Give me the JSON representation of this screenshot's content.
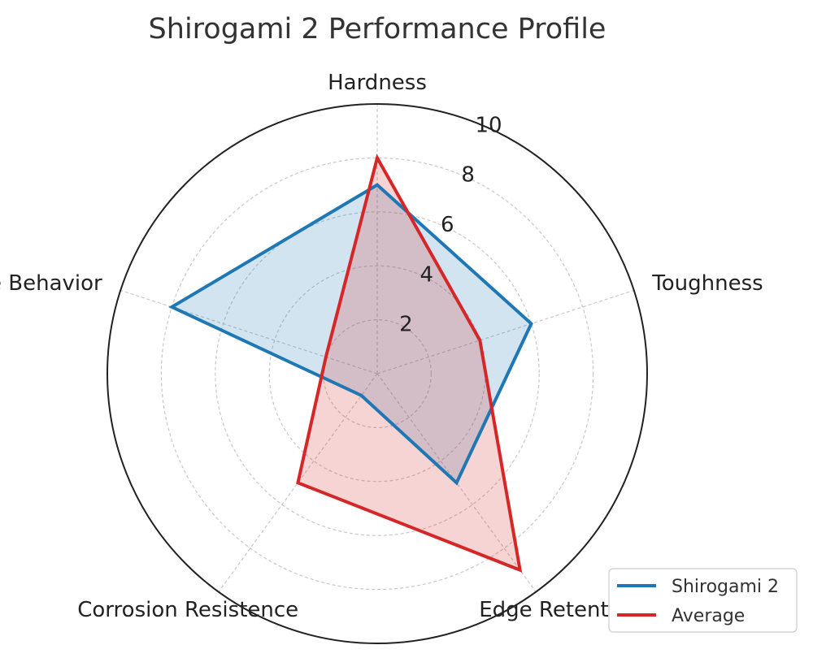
{
  "chart_data": {
    "type": "radar",
    "title": "Shirogami 2 Performance Profile",
    "axes": [
      "Hardness",
      "Toughness",
      "Edge Retention",
      "Corrosion Resistence",
      "Edge Behavior"
    ],
    "rlim": [
      0,
      10
    ],
    "rticks": [
      2,
      4,
      6,
      8,
      10
    ],
    "grid": true,
    "legend_position": "bottom-right",
    "series": [
      {
        "name": "Shirogami 2",
        "values": [
          7,
          6,
          5,
          1,
          8
        ],
        "color": "#1f77b4"
      },
      {
        "name": "Average",
        "values": [
          8,
          4,
          9,
          5,
          2
        ],
        "color": "#d62728"
      }
    ]
  }
}
